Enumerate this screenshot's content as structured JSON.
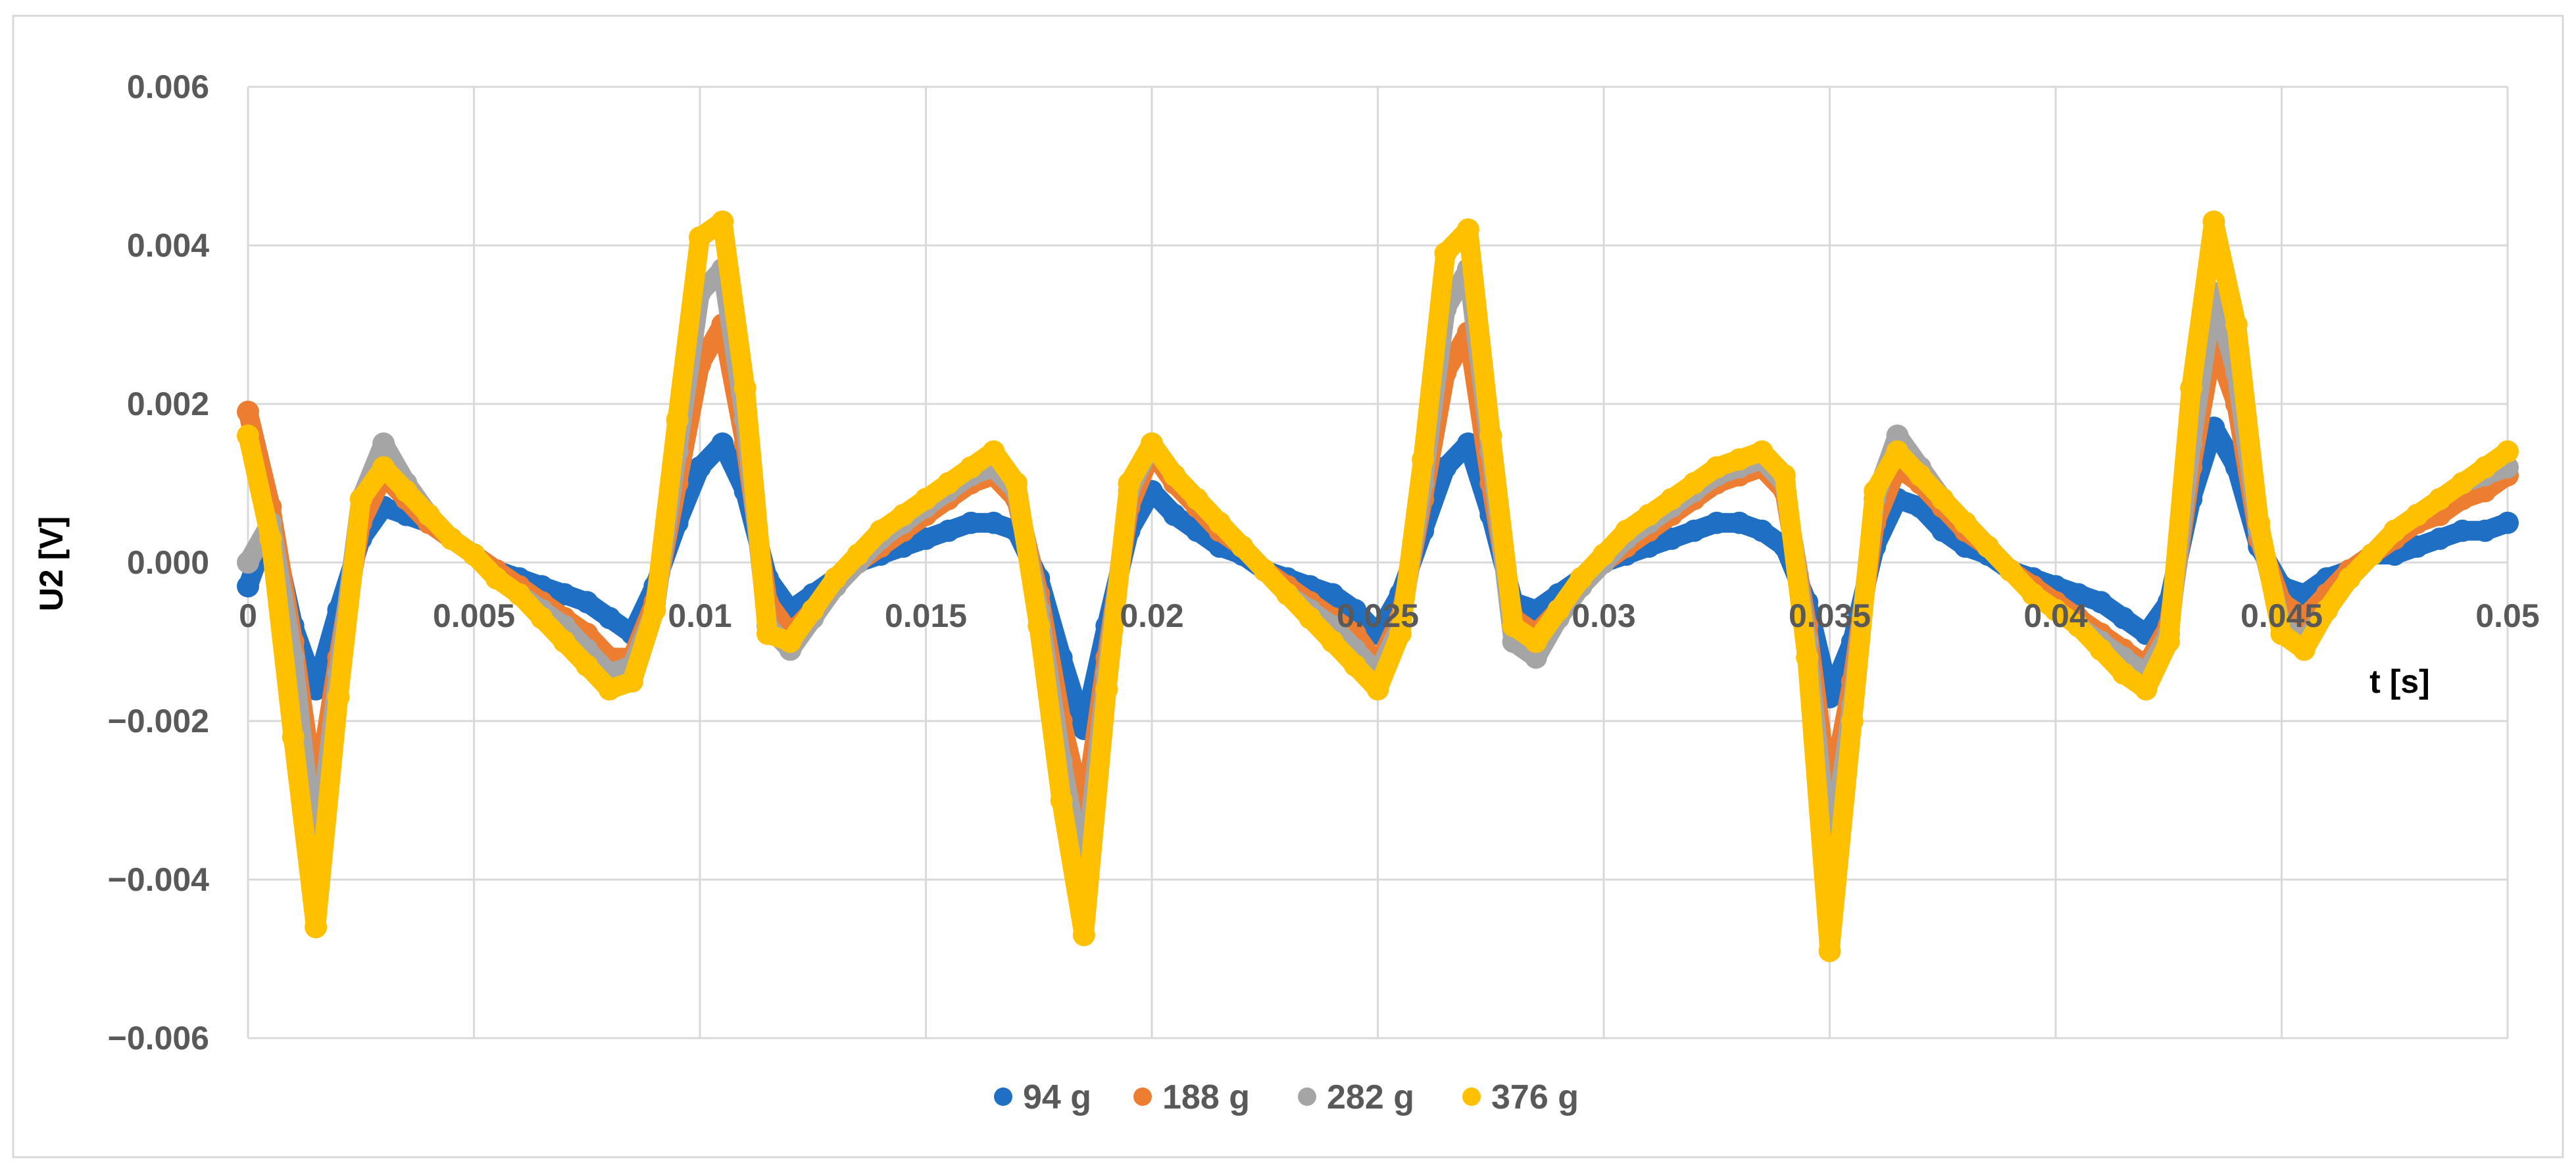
{
  "chart_data": {
    "type": "scatter",
    "title": "",
    "xlabel": "t [s]",
    "ylabel": "U2 [V]",
    "xlim": [
      0,
      0.05
    ],
    "ylim": [
      -0.006,
      0.006
    ],
    "x_ticks": [
      0,
      0.005,
      0.01,
      0.015,
      0.02,
      0.025,
      0.03,
      0.035,
      0.04,
      0.045,
      0.05
    ],
    "x_tick_labels": [
      "0",
      "0.005",
      "0.01",
      "0.015",
      "0.02",
      "0.025",
      "0.03",
      "0.035",
      "0.04",
      "0.045",
      "0.05"
    ],
    "y_ticks": [
      -0.006,
      -0.004,
      -0.002,
      0,
      0.002,
      0.004,
      0.006
    ],
    "y_tick_labels": [
      "−0.006",
      "−0.004",
      "−0.002",
      "0.000",
      "0.002",
      "0.004",
      "0.006"
    ],
    "grid": true,
    "legend_position": "bottom",
    "series": [
      {
        "name": "94 g",
        "color": "#1f6fc5",
        "x": [
          0,
          0.0005,
          0.001,
          0.0015,
          0.002,
          0.0025,
          0.003,
          0.0035,
          0.004,
          0.0045,
          0.005,
          0.0055,
          0.006,
          0.0065,
          0.007,
          0.0075,
          0.008,
          0.0085,
          0.009,
          0.0095,
          0.01,
          0.0105,
          0.011,
          0.0115,
          0.012,
          0.0125,
          0.013,
          0.0135,
          0.014,
          0.0145,
          0.015,
          0.0155,
          0.016,
          0.0165,
          0.017,
          0.0175,
          0.018,
          0.0185,
          0.019,
          0.0195,
          0.02,
          0.0205,
          0.021,
          0.0215,
          0.022,
          0.0225,
          0.023,
          0.0235,
          0.024,
          0.0245,
          0.025,
          0.0255,
          0.026,
          0.0265,
          0.027,
          0.0275,
          0.028,
          0.0285,
          0.029,
          0.0295,
          0.03,
          0.0305,
          0.031,
          0.0315,
          0.032,
          0.0325,
          0.033,
          0.0335,
          0.034,
          0.0345,
          0.035,
          0.0355,
          0.036,
          0.0365,
          0.037,
          0.0375,
          0.038,
          0.0385,
          0.039,
          0.0395,
          0.04,
          0.0405,
          0.041,
          0.0415,
          0.042,
          0.0425,
          0.043,
          0.0435,
          0.044,
          0.0445,
          0.045,
          0.0455,
          0.046,
          0.0465,
          0.047,
          0.0475,
          0.048,
          0.0485,
          0.049,
          0.0495,
          0.05
        ],
        "values": [
          -0.0003,
          0.0005,
          -0.0008,
          -0.0016,
          -0.0006,
          0.0003,
          0.0007,
          0.0006,
          0.0005,
          0.0003,
          0.0001,
          -0.0001,
          -0.0002,
          -0.0003,
          -0.0004,
          -0.0005,
          -0.0007,
          -0.0009,
          -0.0003,
          0.0005,
          0.0012,
          0.0015,
          0.0009,
          -0.0002,
          -0.0006,
          -0.0004,
          -0.0002,
          0,
          0.0001,
          0.0002,
          0.0003,
          0.0004,
          0.0005,
          0.0005,
          0.0004,
          -0.0002,
          -0.0012,
          -0.0021,
          -0.0008,
          0.0004,
          0.0009,
          0.0006,
          0.0004,
          0.0002,
          0.0001,
          -0.0001,
          -0.0002,
          -0.0003,
          -0.0004,
          -0.0006,
          -0.0009,
          -0.0004,
          0.0004,
          0.0012,
          0.0015,
          0.0006,
          -0.0005,
          -0.0006,
          -0.0004,
          -0.0002,
          0,
          0.0001,
          0.0002,
          0.0003,
          0.0004,
          0.0005,
          0.0005,
          0.0004,
          0.0002,
          -0.0005,
          -0.0017,
          -0.001,
          0.0002,
          0.0008,
          0.0007,
          0.0004,
          0.0002,
          0.0001,
          -0.0001,
          -0.0002,
          -0.0003,
          -0.0004,
          -0.0005,
          -0.0007,
          -0.0009,
          -0.0005,
          0.0008,
          0.0017,
          0.0012,
          0.0002,
          -0.0003,
          -0.0004,
          -0.0002,
          -0.0001,
          0.0001,
          0.0001,
          0.0002,
          0.0003,
          0.0004,
          0.0004,
          0.0005
        ]
      },
      {
        "name": "188 g",
        "color": "#ed7d31",
        "x": [
          0,
          0.0005,
          0.001,
          0.0015,
          0.002,
          0.0025,
          0.003,
          0.0035,
          0.004,
          0.0045,
          0.005,
          0.0055,
          0.006,
          0.0065,
          0.007,
          0.0075,
          0.008,
          0.0085,
          0.009,
          0.0095,
          0.01,
          0.0105,
          0.011,
          0.0115,
          0.012,
          0.0125,
          0.013,
          0.0135,
          0.014,
          0.0145,
          0.015,
          0.0155,
          0.016,
          0.0165,
          0.017,
          0.0175,
          0.018,
          0.0185,
          0.019,
          0.0195,
          0.02,
          0.0205,
          0.021,
          0.0215,
          0.022,
          0.0225,
          0.023,
          0.0235,
          0.024,
          0.0245,
          0.025,
          0.0255,
          0.026,
          0.0265,
          0.027,
          0.0275,
          0.028,
          0.0285,
          0.029,
          0.0295,
          0.03,
          0.0305,
          0.031,
          0.0315,
          0.032,
          0.0325,
          0.033,
          0.0335,
          0.034,
          0.0345,
          0.035,
          0.0355,
          0.036,
          0.0365,
          0.037,
          0.0375,
          0.038,
          0.0385,
          0.039,
          0.0395,
          0.04,
          0.0405,
          0.041,
          0.0415,
          0.042,
          0.0425,
          0.043,
          0.0435,
          0.044,
          0.0445,
          0.045,
          0.0455,
          0.046,
          0.0465,
          0.047,
          0.0475,
          0.048,
          0.0485,
          0.049,
          0.0495,
          0.05
        ],
        "values": [
          0.0019,
          0.0007,
          -0.001,
          -0.003,
          -0.0012,
          0.0005,
          0.0011,
          0.0008,
          0.0005,
          0.0003,
          0.0001,
          -0.0001,
          -0.0003,
          -0.0005,
          -0.0007,
          -0.0009,
          -0.0012,
          -0.0012,
          -0.0005,
          0.001,
          0.0025,
          0.003,
          0.0015,
          -0.0005,
          -0.0009,
          -0.0006,
          -0.0003,
          0,
          0.0002,
          0.0004,
          0.0006,
          0.0008,
          0.001,
          0.0011,
          0.0008,
          -0.0004,
          -0.002,
          -0.0032,
          -0.0012,
          0.0007,
          0.0014,
          0.001,
          0.0007,
          0.0004,
          0.0002,
          -0.0001,
          -0.0003,
          -0.0005,
          -0.0007,
          -0.0009,
          -0.0013,
          -0.0007,
          0.0008,
          0.0024,
          0.0029,
          0.001,
          -0.0007,
          -0.0009,
          -0.0006,
          -0.0003,
          0,
          0.0002,
          0.0004,
          0.0006,
          0.0008,
          0.001,
          0.0011,
          0.0012,
          0.0009,
          -0.0008,
          -0.003,
          -0.0015,
          0.0005,
          0.0012,
          0.001,
          0.0007,
          0.0004,
          0.0002,
          -0.0001,
          -0.0003,
          -0.0005,
          -0.0007,
          -0.0009,
          -0.0011,
          -0.0013,
          -0.0008,
          0.0012,
          0.0028,
          0.002,
          0.0003,
          -0.0005,
          -0.0007,
          -0.0004,
          -0.0001,
          0.0001,
          0.0003,
          0.0005,
          0.0006,
          0.0008,
          0.0009,
          0.0011
        ]
      },
      {
        "name": "282 g",
        "color": "#a5a5a5",
        "x": [
          0,
          0.0005,
          0.001,
          0.0015,
          0.002,
          0.0025,
          0.003,
          0.0035,
          0.004,
          0.0045,
          0.005,
          0.0055,
          0.006,
          0.0065,
          0.007,
          0.0075,
          0.008,
          0.0085,
          0.009,
          0.0095,
          0.01,
          0.0105,
          0.011,
          0.0115,
          0.012,
          0.0125,
          0.013,
          0.0135,
          0.014,
          0.0145,
          0.015,
          0.0155,
          0.016,
          0.0165,
          0.017,
          0.0175,
          0.018,
          0.0185,
          0.019,
          0.0195,
          0.02,
          0.0205,
          0.021,
          0.0215,
          0.022,
          0.0225,
          0.023,
          0.0235,
          0.024,
          0.0245,
          0.025,
          0.0255,
          0.026,
          0.0265,
          0.027,
          0.0275,
          0.028,
          0.0285,
          0.029,
          0.0295,
          0.03,
          0.0305,
          0.031,
          0.0315,
          0.032,
          0.0325,
          0.033,
          0.0335,
          0.034,
          0.0345,
          0.035,
          0.0355,
          0.036,
          0.0365,
          0.037,
          0.0375,
          0.038,
          0.0385,
          0.039,
          0.0395,
          0.04,
          0.0405,
          0.041,
          0.0415,
          0.042,
          0.0425,
          0.043,
          0.0435,
          0.044,
          0.0445,
          0.045,
          0.0455,
          0.046,
          0.0465,
          0.047,
          0.0475,
          0.048,
          0.0485,
          0.049,
          0.0495,
          0.05
        ],
        "values": [
          0.0,
          0.0005,
          -0.0012,
          -0.0038,
          -0.0014,
          0.0008,
          0.0015,
          0.001,
          0.0006,
          0.0003,
          0.0001,
          -0.0002,
          -0.0004,
          -0.0006,
          -0.0008,
          -0.0011,
          -0.0014,
          -0.0013,
          -0.0006,
          0.0014,
          0.0034,
          0.0037,
          0.0018,
          -0.0008,
          -0.0011,
          -0.0007,
          -0.0003,
          0,
          0.0003,
          0.0005,
          0.0007,
          0.0009,
          0.0011,
          0.0012,
          0.0009,
          -0.0006,
          -0.0025,
          -0.004,
          -0.0014,
          0.0009,
          0.0015,
          0.0011,
          0.0008,
          0.0005,
          0.0002,
          -0.0001,
          -0.0004,
          -0.0006,
          -0.0008,
          -0.0011,
          -0.0014,
          -0.0008,
          0.001,
          0.0032,
          0.0037,
          0.0014,
          -0.001,
          -0.0012,
          -0.0007,
          -0.0003,
          0,
          0.0003,
          0.0005,
          0.0007,
          0.0009,
          0.0011,
          0.0012,
          0.0013,
          0.001,
          -0.001,
          -0.0038,
          -0.0018,
          0.0008,
          0.0016,
          0.0012,
          0.0008,
          0.0005,
          0.0002,
          -0.0001,
          -0.0004,
          -0.0006,
          -0.0008,
          -0.001,
          -0.0012,
          -0.0014,
          -0.0009,
          0.0015,
          0.0034,
          0.0024,
          0.0004,
          -0.0008,
          -0.001,
          -0.0006,
          -0.0002,
          0.0001,
          0.0004,
          0.0006,
          0.0008,
          0.001,
          0.0011,
          0.0012
        ]
      },
      {
        "name": "376 g",
        "color": "#ffc000",
        "x": [
          0,
          0.0005,
          0.001,
          0.0015,
          0.002,
          0.0025,
          0.003,
          0.0035,
          0.004,
          0.0045,
          0.005,
          0.0055,
          0.006,
          0.0065,
          0.007,
          0.0075,
          0.008,
          0.0085,
          0.009,
          0.0095,
          0.01,
          0.0105,
          0.011,
          0.0115,
          0.012,
          0.0125,
          0.013,
          0.0135,
          0.014,
          0.0145,
          0.015,
          0.0155,
          0.016,
          0.0165,
          0.017,
          0.0175,
          0.018,
          0.0185,
          0.019,
          0.0195,
          0.02,
          0.0205,
          0.021,
          0.0215,
          0.022,
          0.0225,
          0.023,
          0.0235,
          0.024,
          0.0245,
          0.025,
          0.0255,
          0.026,
          0.0265,
          0.027,
          0.0275,
          0.028,
          0.0285,
          0.029,
          0.0295,
          0.03,
          0.0305,
          0.031,
          0.0315,
          0.032,
          0.0325,
          0.033,
          0.0335,
          0.034,
          0.0345,
          0.035,
          0.0355,
          0.036,
          0.0365,
          0.037,
          0.0375,
          0.038,
          0.0385,
          0.039,
          0.0395,
          0.04,
          0.0405,
          0.041,
          0.0415,
          0.042,
          0.0425,
          0.043,
          0.0435,
          0.044,
          0.0445,
          0.045,
          0.0455,
          0.046,
          0.0465,
          0.047,
          0.0475,
          0.048,
          0.0485,
          0.049,
          0.0495,
          0.05
        ],
        "values": [
          0.0016,
          0.0003,
          -0.0022,
          -0.0046,
          -0.0017,
          0.0008,
          0.0012,
          0.0009,
          0.0006,
          0.0003,
          0.0001,
          -0.0002,
          -0.0004,
          -0.0007,
          -0.001,
          -0.0013,
          -0.0016,
          -0.0015,
          -0.0006,
          0.0018,
          0.0041,
          0.0043,
          0.0022,
          -0.0009,
          -0.001,
          -0.0006,
          -0.0002,
          0.0001,
          0.0004,
          0.0006,
          0.0008,
          0.001,
          0.0012,
          0.0014,
          0.001,
          -0.0008,
          -0.003,
          -0.0047,
          -0.0016,
          0.001,
          0.0015,
          0.0011,
          0.0008,
          0.0005,
          0.0002,
          -0.0001,
          -0.0004,
          -0.0007,
          -0.001,
          -0.0013,
          -0.0016,
          -0.0009,
          0.0013,
          0.0039,
          0.0042,
          0.0016,
          -0.0008,
          -0.001,
          -0.0006,
          -0.0002,
          0.0001,
          0.0004,
          0.0006,
          0.0008,
          0.001,
          0.0012,
          0.0013,
          0.0014,
          0.0011,
          -0.0012,
          -0.0049,
          -0.002,
          0.0009,
          0.0014,
          0.0011,
          0.0008,
          0.0005,
          0.0002,
          -0.0001,
          -0.0004,
          -0.0006,
          -0.0008,
          -0.0011,
          -0.0014,
          -0.0016,
          -0.001,
          0.0022,
          0.0043,
          0.003,
          0.0005,
          -0.0009,
          -0.0011,
          -0.0006,
          -0.0002,
          0.0001,
          0.0004,
          0.0006,
          0.0008,
          0.001,
          0.0012,
          0.0014
        ]
      }
    ]
  }
}
